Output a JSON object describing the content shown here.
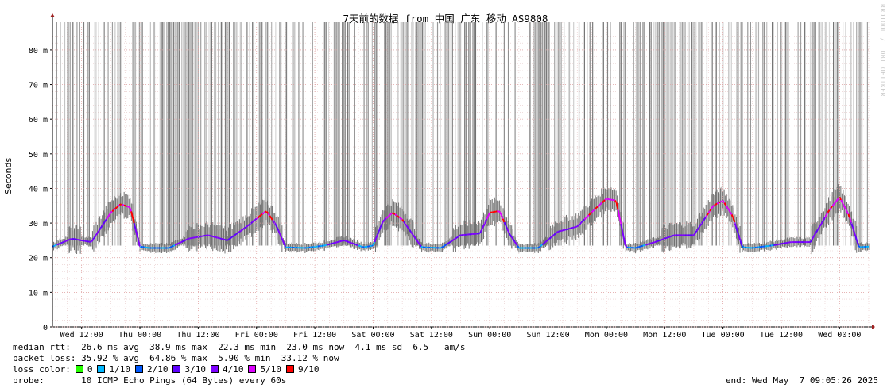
{
  "chart_data": {
    "type": "area",
    "title": "7天前的数据 from 中国 广东 移动 AS9808",
    "ylabel": "Seconds",
    "ylim": [
      0,
      0.088
    ],
    "y_ticks": [
      {
        "value": 0,
        "label": "0"
      },
      {
        "value": 0.01,
        "label": "10 m"
      },
      {
        "value": 0.02,
        "label": "20 m"
      },
      {
        "value": 0.03,
        "label": "30 m"
      },
      {
        "value": 0.04,
        "label": "40 m"
      },
      {
        "value": 0.05,
        "label": "50 m"
      },
      {
        "value": 0.06,
        "label": "60 m"
      },
      {
        "value": 0.07,
        "label": "70 m"
      },
      {
        "value": 0.08,
        "label": "80 m"
      }
    ],
    "x_tick_labels": [
      "Wed 12:00",
      "Thu 00:00",
      "Thu 12:00",
      "Fri 00:00",
      "Fri 12:00",
      "Sat 00:00",
      "Sat 12:00",
      "Sun 00:00",
      "Sun 12:00",
      "Mon 00:00",
      "Mon 12:00",
      "Tue 00:00",
      "Tue 12:00",
      "Wed 00:00"
    ],
    "x_range_hours": [
      0,
      168
    ],
    "grid": true,
    "series": [
      {
        "name": "median rtt",
        "x_hours": [
          0,
          4,
          8,
          12,
          14,
          16,
          18,
          20,
          22,
          24,
          28,
          32,
          36,
          40,
          44,
          46,
          48,
          52,
          56,
          60,
          64,
          66,
          68,
          70,
          72,
          76,
          80,
          84,
          88,
          90,
          92,
          94,
          96,
          100,
          104,
          108,
          112,
          114,
          116,
          118,
          120,
          124,
          128,
          132,
          136,
          138,
          140,
          142,
          144,
          148,
          152,
          156,
          160,
          162,
          164,
          166,
          168
        ],
        "values": [
          0.0232,
          0.0255,
          0.0245,
          0.033,
          0.0355,
          0.0345,
          0.0232,
          0.0228,
          0.0228,
          0.0228,
          0.0255,
          0.0265,
          0.025,
          0.029,
          0.0335,
          0.0295,
          0.023,
          0.0228,
          0.0235,
          0.025,
          0.023,
          0.0235,
          0.0305,
          0.033,
          0.031,
          0.023,
          0.0228,
          0.0265,
          0.027,
          0.033,
          0.0335,
          0.027,
          0.0228,
          0.0228,
          0.0275,
          0.029,
          0.0345,
          0.037,
          0.0365,
          0.023,
          0.0228,
          0.0245,
          0.0265,
          0.0265,
          0.035,
          0.0365,
          0.032,
          0.023,
          0.0228,
          0.0235,
          0.0245,
          0.0245,
          0.034,
          0.0375,
          0.032,
          0.023,
          0.0232
        ]
      }
    ],
    "loss_colors": [
      {
        "label": "0",
        "color": "#26ff00"
      },
      {
        "label": "1/10",
        "color": "#00b8ff"
      },
      {
        "label": "2/10",
        "color": "#0059ff"
      },
      {
        "label": "3/10",
        "color": "#5e00ff"
      },
      {
        "label": "4/10",
        "color": "#7e00ff"
      },
      {
        "label": "5/10",
        "color": "#dd00ff"
      },
      {
        "label": "9/10",
        "color": "#ff0000"
      }
    ],
    "median_rtt_line": "median rtt:  26.6 ms avg  38.9 ms max  22.3 ms min  23.0 ms now  4.1 ms sd  6.5   am/s",
    "packet_loss_line": "packet loss: 35.92 % avg  64.86 % max  5.90 % min  33.12 % now",
    "loss_color_label": "loss color:",
    "probe_line": "probe:       10 ICMP Echo Pings (64 Bytes) every 60s",
    "end_line": "end: Wed May  7 09:05:26 2025",
    "watermark": "RRDTOOL / TOBI OETIKER"
  }
}
